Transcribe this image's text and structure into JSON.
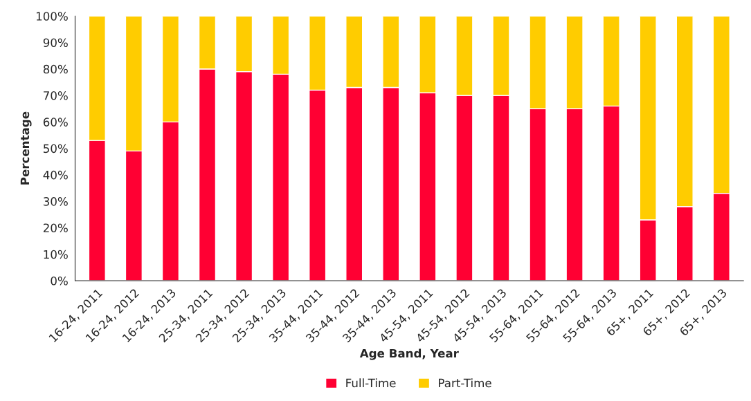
{
  "chart_data": {
    "type": "bar",
    "stacked": true,
    "xlabel": "Age Band, Year",
    "ylabel": "Percentage",
    "categories": [
      "16-24, 2011",
      "16-24, 2012",
      "16-24, 2013",
      "25-34, 2011",
      "25-34, 2012",
      "25-34, 2013",
      "35-44, 2011",
      "35-44, 2012",
      "35-44, 2013",
      "45-54, 2011",
      "45-54, 2012",
      "45-54, 2013",
      "55-64, 2011",
      "55-64, 2012",
      "55-64, 2013",
      "65+, 2011",
      "65+, 2012",
      "65+, 2013"
    ],
    "series": [
      {
        "name": "Full-Time",
        "color": "#ff0033",
        "values": [
          53,
          49,
          60,
          80,
          79,
          78,
          72,
          73,
          73,
          71,
          70,
          70,
          65,
          65,
          66,
          23,
          28,
          33
        ]
      },
      {
        "name": "Part-Time",
        "color": "#ffcc00",
        "values": [
          47,
          51,
          40,
          20,
          21,
          22,
          28,
          27,
          27,
          29,
          30,
          30,
          35,
          35,
          34,
          77,
          72,
          67
        ]
      }
    ],
    "ylim": [
      0,
      100
    ],
    "yticks": [
      {
        "value": 0,
        "label": "0%"
      },
      {
        "value": 10,
        "label": "10%"
      },
      {
        "value": 20,
        "label": "20%"
      },
      {
        "value": 30,
        "label": "30%"
      },
      {
        "value": 40,
        "label": "40%"
      },
      {
        "value": 50,
        "label": "50%"
      },
      {
        "value": 60,
        "label": "60%"
      },
      {
        "value": 70,
        "label": "70%"
      },
      {
        "value": 80,
        "label": "80%"
      },
      {
        "value": 90,
        "label": "90%"
      },
      {
        "value": 100,
        "label": "100%"
      }
    ],
    "grid": false,
    "legend": "bottom"
  }
}
